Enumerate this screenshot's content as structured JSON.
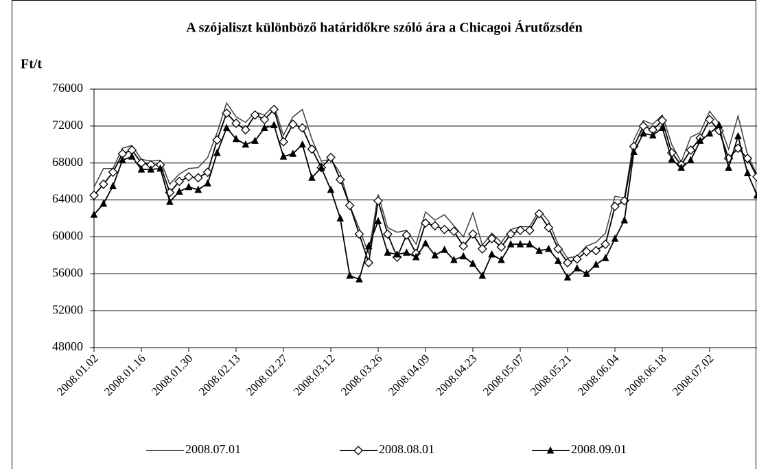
{
  "chart_data": {
    "type": "line",
    "title": "A szójaliszt különböző határidőkre szóló ára a Chicagoi Árutőzsdén",
    "y_label": "Ft/t",
    "categories": [
      "2008.01.02",
      null,
      null,
      null,
      null,
      "2008.01.16",
      null,
      null,
      null,
      null,
      "2008.01.30",
      null,
      null,
      null,
      null,
      "2008.02.13",
      null,
      null,
      null,
      null,
      "2008.02.27",
      null,
      null,
      null,
      null,
      "2008.03.12",
      null,
      null,
      null,
      null,
      "2008.03.26",
      null,
      null,
      null,
      null,
      "2008.04.09",
      null,
      null,
      null,
      null,
      "2008.04.23",
      null,
      null,
      null,
      null,
      "2008.05.07",
      null,
      null,
      null,
      null,
      "2008.05.21",
      null,
      null,
      null,
      null,
      "2008.06.04",
      null,
      null,
      null,
      null,
      "2008.06.18",
      null,
      null,
      null,
      null,
      "2008.07.02",
      null,
      null,
      null,
      null,
      null
    ],
    "series": [
      {
        "name": "2008.07.01",
        "color": "#404040",
        "marker": "none",
        "values": [
          65400,
          67400,
          67400,
          69600,
          69900,
          68400,
          68200,
          68300,
          65700,
          66800,
          67400,
          67500,
          68600,
          71300,
          74500,
          73000,
          72400,
          73500,
          73200,
          74200,
          71000,
          73000,
          73800,
          70600,
          68200,
          68400,
          66900,
          63400,
          60900,
          58200,
          64600,
          61000,
          60500,
          60700,
          59200,
          62700,
          61800,
          62400,
          61200,
          60000,
          62600,
          59100,
          60400,
          59400,
          60800,
          61100,
          61100,
          62900,
          61700,
          59200,
          57700,
          57900,
          59000,
          59400,
          60400,
          64400,
          64200,
          70500,
          72600,
          72200,
          73200,
          70000,
          68100,
          70800,
          71300,
          73600,
          72300,
          69500,
          73100,
          68900,
          66700
        ]
      },
      {
        "name": "2008.08.01",
        "color": "#000000",
        "marker": "diamond",
        "values": [
          64500,
          65700,
          67000,
          69000,
          69400,
          68000,
          67800,
          67800,
          64800,
          66000,
          66500,
          66400,
          67000,
          70500,
          73400,
          72300,
          71600,
          73200,
          72700,
          73800,
          70300,
          72200,
          71800,
          69500,
          67500,
          68600,
          66200,
          63400,
          60300,
          57200,
          63900,
          60300,
          57800,
          60200,
          58200,
          61500,
          61200,
          60800,
          60600,
          59000,
          60300,
          58700,
          59800,
          58900,
          60300,
          60700,
          60700,
          62500,
          61000,
          58700,
          57200,
          57600,
          58400,
          58500,
          59200,
          63300,
          63900,
          69800,
          72000,
          71600,
          72600,
          69100,
          67800,
          69400,
          70700,
          72700,
          71500,
          68500,
          69600,
          68500,
          66500
        ]
      },
      {
        "name": "2008.09.01",
        "color": "#000000",
        "marker": "triangle",
        "values": [
          62400,
          63600,
          65500,
          68300,
          68700,
          67300,
          67300,
          67400,
          63800,
          64900,
          65400,
          65100,
          65800,
          69100,
          71800,
          70600,
          70000,
          70400,
          71800,
          72100,
          68700,
          69000,
          70000,
          66400,
          67500,
          65100,
          62000,
          55800,
          55400,
          59000,
          61700,
          58300,
          58100,
          58300,
          57800,
          59300,
          58000,
          58600,
          57500,
          57900,
          57100,
          55800,
          58100,
          57500,
          59200,
          59200,
          59200,
          58500,
          58700,
          57400,
          55600,
          56600,
          56000,
          57000,
          57700,
          59800,
          61800,
          69200,
          71200,
          71000,
          71800,
          68400,
          67500,
          68300,
          70400,
          71200,
          72100,
          67500,
          70900,
          66900,
          64500
        ]
      }
    ],
    "ylim": [
      48000,
      76000
    ],
    "yticks": [
      48000,
      52000,
      56000,
      60000,
      64000,
      68000,
      72000,
      76000
    ],
    "grid": true,
    "legend": "bottom"
  }
}
